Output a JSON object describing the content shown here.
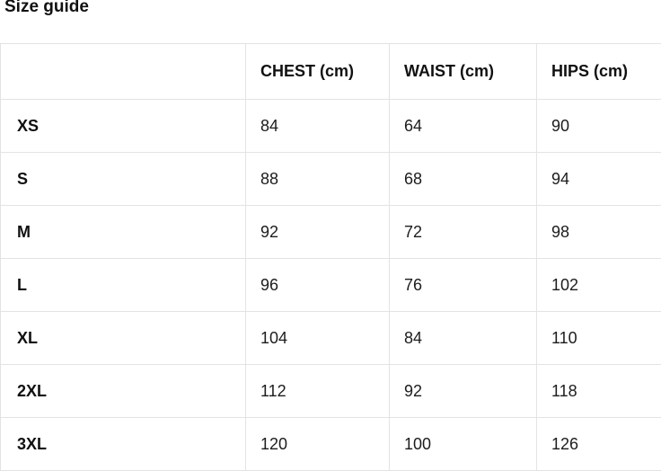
{
  "header": {
    "title": "Size guide"
  },
  "colors": {
    "background": "#ffffff",
    "border": "#e3e3e3",
    "text": "#111111"
  },
  "chart_data": {
    "type": "table",
    "title": "Size guide",
    "columns": [
      "",
      "CHEST (cm)",
      "WAIST (cm)",
      "HIPS (cm)"
    ],
    "rows": [
      [
        "XS",
        "84",
        "64",
        "90"
      ],
      [
        "S",
        "88",
        "68",
        "94"
      ],
      [
        "M",
        "92",
        "72",
        "98"
      ],
      [
        "L",
        "96",
        "76",
        "102"
      ],
      [
        "XL",
        "104",
        "84",
        "110"
      ],
      [
        "2XL",
        "112",
        "92",
        "118"
      ],
      [
        "3XL",
        "120",
        "100",
        "126"
      ]
    ]
  }
}
